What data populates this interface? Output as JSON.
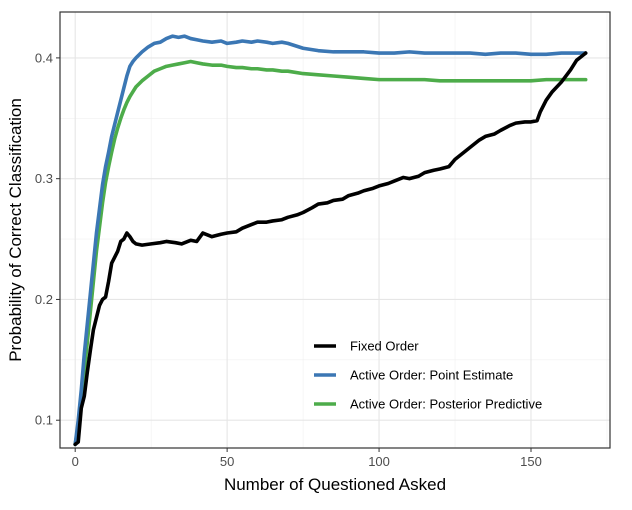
{
  "chart_data": {
    "type": "line",
    "title": "",
    "xlabel": "Number of Questioned Asked",
    "ylabel": "Probability of Correct Classification",
    "xlim": [
      -5,
      176
    ],
    "ylim": [
      0.077,
      0.438
    ],
    "xticks": [
      0,
      50,
      100,
      150
    ],
    "xtick_labels": [
      "0",
      "50",
      "100",
      "150"
    ],
    "yticks": [
      0.1,
      0.2,
      0.3,
      0.4
    ],
    "ytick_labels": [
      "0.1",
      "0.2",
      "0.3",
      "0.4"
    ],
    "grid": true,
    "legend_position": "bottom-right",
    "series": [
      {
        "name": "Fixed Order",
        "color": "#000000",
        "x": [
          0,
          1,
          2,
          3,
          4,
          5,
          6,
          7,
          8,
          9,
          10,
          11,
          12,
          13,
          14,
          15,
          16,
          17,
          18,
          19,
          20,
          22,
          25,
          28,
          30,
          33,
          35,
          38,
          40,
          42,
          45,
          48,
          50,
          53,
          55,
          58,
          60,
          63,
          65,
          68,
          70,
          73,
          75,
          78,
          80,
          83,
          85,
          88,
          90,
          93,
          95,
          98,
          100,
          103,
          105,
          108,
          110,
          113,
          115,
          118,
          120,
          123,
          125,
          128,
          130,
          133,
          135,
          138,
          140,
          143,
          145,
          148,
          150,
          152,
          153,
          155,
          157,
          160,
          163,
          165,
          167,
          168
        ],
        "values": [
          0.08,
          0.082,
          0.11,
          0.12,
          0.14,
          0.158,
          0.175,
          0.185,
          0.195,
          0.2,
          0.202,
          0.215,
          0.23,
          0.235,
          0.24,
          0.248,
          0.25,
          0.255,
          0.252,
          0.248,
          0.246,
          0.245,
          0.246,
          0.247,
          0.248,
          0.247,
          0.246,
          0.249,
          0.248,
          0.255,
          0.252,
          0.254,
          0.255,
          0.256,
          0.259,
          0.262,
          0.264,
          0.264,
          0.265,
          0.266,
          0.268,
          0.27,
          0.272,
          0.276,
          0.279,
          0.28,
          0.282,
          0.283,
          0.286,
          0.288,
          0.29,
          0.292,
          0.294,
          0.296,
          0.298,
          0.301,
          0.3,
          0.302,
          0.305,
          0.307,
          0.308,
          0.31,
          0.316,
          0.322,
          0.326,
          0.332,
          0.335,
          0.337,
          0.34,
          0.344,
          0.346,
          0.347,
          0.347,
          0.348,
          0.355,
          0.365,
          0.372,
          0.38,
          0.39,
          0.398,
          0.402,
          0.404
        ]
      },
      {
        "name": "Active Order: Point Estimate",
        "color": "#3b77b4",
        "x": [
          0,
          1,
          2,
          3,
          4,
          5,
          6,
          7,
          8,
          9,
          10,
          11,
          12,
          13,
          14,
          15,
          16,
          17,
          18,
          19,
          20,
          22,
          24,
          26,
          28,
          30,
          32,
          34,
          36,
          38,
          40,
          42,
          45,
          48,
          50,
          53,
          55,
          58,
          60,
          63,
          65,
          68,
          70,
          75,
          80,
          85,
          90,
          95,
          100,
          105,
          110,
          115,
          120,
          125,
          130,
          135,
          140,
          145,
          150,
          155,
          160,
          165,
          168
        ],
        "values": [
          0.08,
          0.1,
          0.125,
          0.155,
          0.18,
          0.205,
          0.23,
          0.255,
          0.275,
          0.295,
          0.31,
          0.322,
          0.335,
          0.345,
          0.355,
          0.365,
          0.375,
          0.385,
          0.393,
          0.397,
          0.4,
          0.405,
          0.409,
          0.412,
          0.413,
          0.416,
          0.418,
          0.417,
          0.418,
          0.416,
          0.415,
          0.414,
          0.413,
          0.414,
          0.412,
          0.413,
          0.414,
          0.413,
          0.414,
          0.413,
          0.412,
          0.413,
          0.412,
          0.408,
          0.406,
          0.405,
          0.405,
          0.405,
          0.404,
          0.404,
          0.405,
          0.404,
          0.404,
          0.404,
          0.404,
          0.403,
          0.404,
          0.404,
          0.403,
          0.403,
          0.404,
          0.404,
          0.404
        ]
      },
      {
        "name": "Active Order: Posterior Predictive",
        "color": "#4dac4a",
        "x": [
          0,
          1,
          2,
          3,
          4,
          5,
          6,
          7,
          8,
          9,
          10,
          11,
          12,
          13,
          14,
          15,
          16,
          17,
          18,
          19,
          20,
          22,
          24,
          26,
          28,
          30,
          32,
          34,
          36,
          38,
          40,
          42,
          45,
          48,
          50,
          53,
          55,
          58,
          60,
          63,
          65,
          68,
          70,
          75,
          80,
          85,
          90,
          95,
          100,
          105,
          110,
          115,
          120,
          125,
          130,
          135,
          140,
          145,
          150,
          155,
          160,
          165,
          168
        ],
        "values": [
          0.08,
          0.095,
          0.115,
          0.14,
          0.165,
          0.19,
          0.215,
          0.24,
          0.26,
          0.28,
          0.297,
          0.31,
          0.322,
          0.333,
          0.342,
          0.35,
          0.357,
          0.363,
          0.368,
          0.372,
          0.376,
          0.381,
          0.385,
          0.389,
          0.391,
          0.393,
          0.394,
          0.395,
          0.396,
          0.397,
          0.396,
          0.395,
          0.394,
          0.394,
          0.393,
          0.392,
          0.392,
          0.391,
          0.391,
          0.39,
          0.39,
          0.389,
          0.389,
          0.387,
          0.386,
          0.385,
          0.384,
          0.383,
          0.382,
          0.382,
          0.382,
          0.382,
          0.381,
          0.381,
          0.381,
          0.381,
          0.381,
          0.381,
          0.381,
          0.382,
          0.382,
          0.382,
          0.382
        ]
      }
    ]
  }
}
